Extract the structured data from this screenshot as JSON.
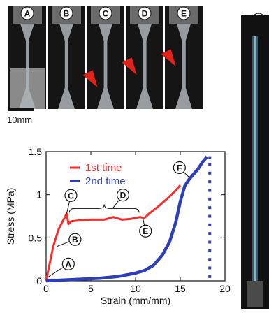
{
  "panels": [
    {
      "label": "A"
    },
    {
      "label": "B"
    },
    {
      "label": "C"
    },
    {
      "label": "D"
    },
    {
      "label": "E"
    },
    {
      "label": "F"
    }
  ],
  "scale_bar": {
    "label": "10mm"
  },
  "colors": {
    "first": "#ff2a2a",
    "second": "#2d3fb8",
    "arrow": "#e2231a"
  },
  "chart_data": {
    "type": "line",
    "xlabel": "Strain (mm/mm)",
    "ylabel": "Stress (MPa)",
    "xlim": [
      0,
      20
    ],
    "ylim": [
      0,
      1.5
    ],
    "xticks": [
      "0",
      "5",
      "10",
      "15",
      "20"
    ],
    "yticks": [
      "0",
      "0.5",
      "1",
      "1.5"
    ],
    "legend_position": "top-center",
    "series": [
      {
        "name": "1st time",
        "color": "#ff2a2a",
        "x": [
          0,
          0.3,
          0.8,
          1.4,
          2.0,
          2.3,
          2.5,
          2.8,
          3.5,
          5,
          6.5,
          7.5,
          8.5,
          9.5,
          10.5,
          11.0,
          11.5,
          12.5,
          13.5,
          14.5,
          15.0
        ],
        "y": [
          0,
          0.15,
          0.4,
          0.6,
          0.72,
          0.78,
          0.66,
          0.69,
          0.7,
          0.71,
          0.71,
          0.74,
          0.71,
          0.72,
          0.74,
          0.73,
          0.78,
          0.86,
          0.95,
          1.05,
          1.11
        ]
      },
      {
        "name": "2nd time",
        "color": "#2d3fb8",
        "x": [
          0,
          2,
          4,
          6,
          8,
          10,
          11,
          12,
          13,
          13.8,
          14.5,
          15.0,
          15.5,
          16.0,
          16.5,
          17.0,
          17.5,
          18.0
        ],
        "y": [
          0,
          0.01,
          0.02,
          0.03,
          0.05,
          0.09,
          0.12,
          0.18,
          0.3,
          0.45,
          0.68,
          0.92,
          1.1,
          1.18,
          1.24,
          1.3,
          1.38,
          1.44
        ]
      },
      {
        "name": "",
        "color": "#2d3fb8",
        "style": "dots",
        "x": [
          18.3,
          18.3,
          18.3,
          18.3,
          18.3,
          18.3,
          18.3,
          18.3,
          18.3,
          18.3,
          18.3,
          18.3,
          18.3,
          18.3,
          18.3
        ],
        "y": [
          0.05,
          0.15,
          0.25,
          0.35,
          0.45,
          0.55,
          0.65,
          0.75,
          0.85,
          0.95,
          1.05,
          1.15,
          1.25,
          1.35,
          1.43
        ]
      }
    ],
    "annotations": [
      {
        "label": "A",
        "x": 0.3,
        "y": 0.05
      },
      {
        "label": "B",
        "x": 1.2,
        "y": 0.4
      },
      {
        "label": "C",
        "x": 2.3,
        "y": 0.78
      },
      {
        "label": "D",
        "x": 7.5,
        "y": 0.85
      },
      {
        "label": "E",
        "x": 10.8,
        "y": 0.74
      },
      {
        "label": "F",
        "x": 16.0,
        "y": 1.2
      }
    ]
  }
}
